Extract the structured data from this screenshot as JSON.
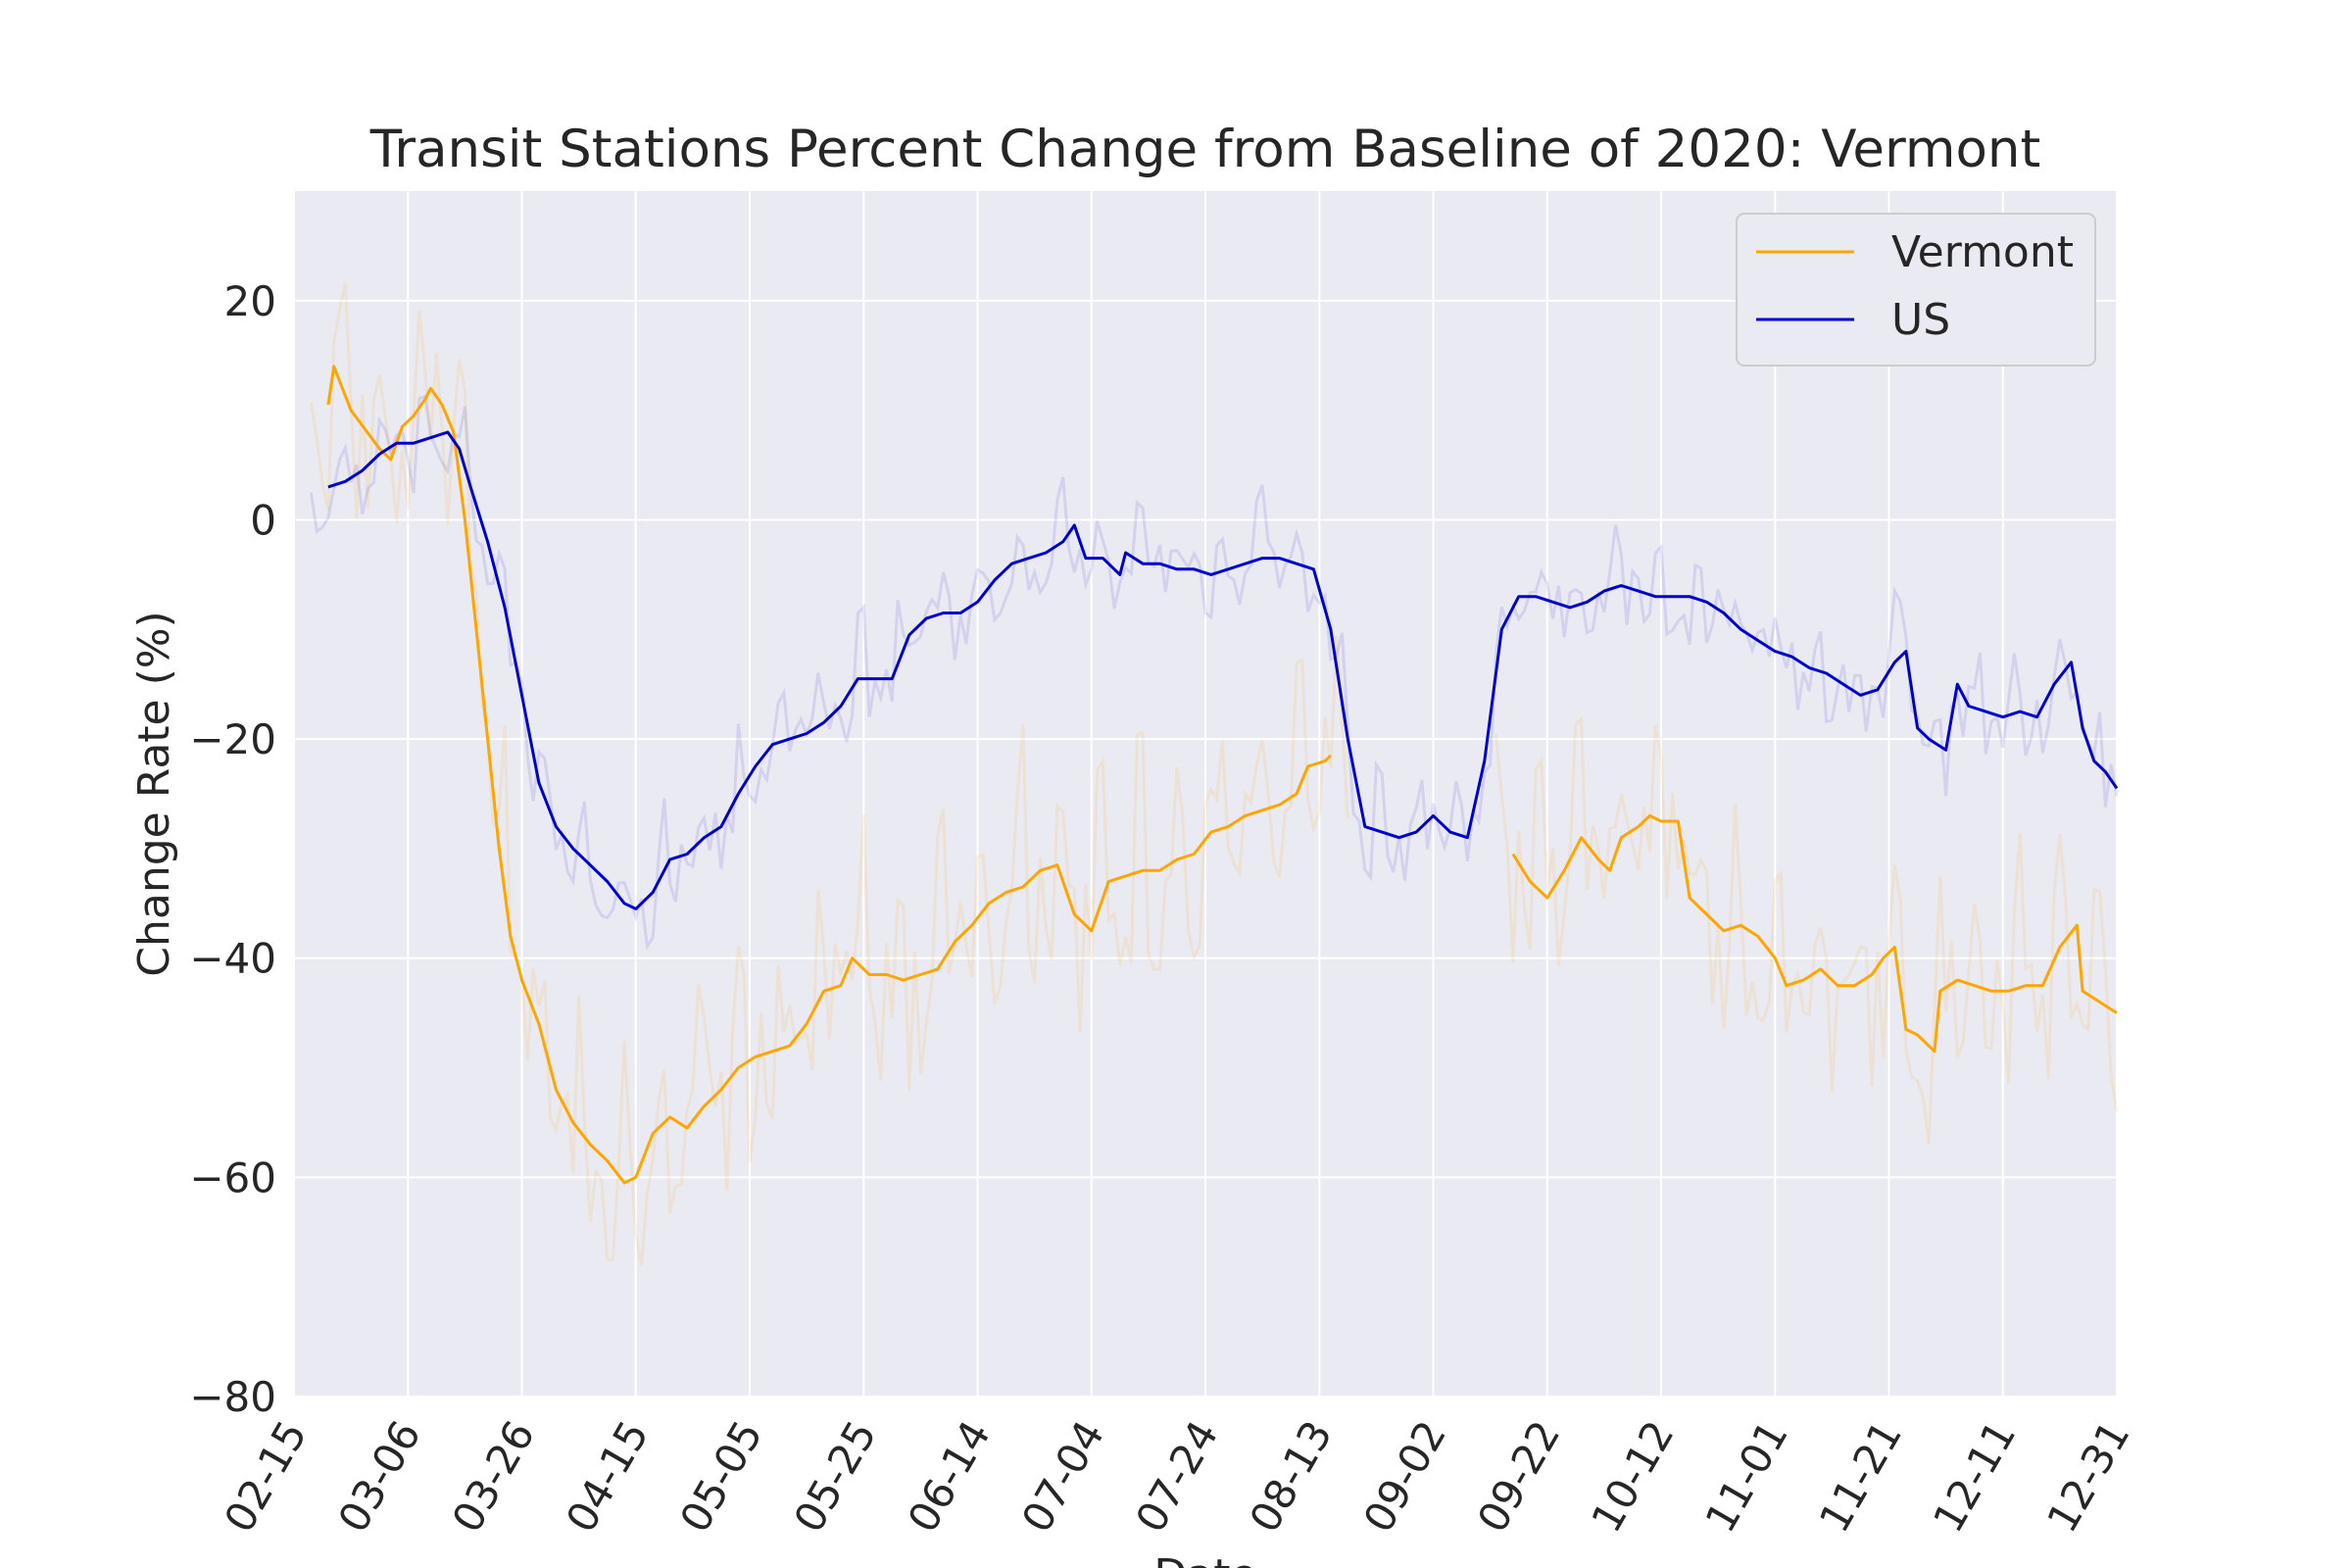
{
  "chart_data": {
    "type": "line",
    "title": "Transit Stations Percent Change from Baseline of 2020: Vermont",
    "xlabel": "Date",
    "ylabel": "Change Rate (%)",
    "xlim": [
      "02-15",
      "12-31"
    ],
    "ylim": [
      -80,
      30
    ],
    "grid": true,
    "legend_position": "top-right",
    "x_ticks": [
      "02-15",
      "03-06",
      "03-26",
      "04-15",
      "05-05",
      "05-25",
      "06-14",
      "07-04",
      "07-24",
      "08-13",
      "09-02",
      "09-22",
      "10-12",
      "11-01",
      "11-21",
      "12-11",
      "12-31"
    ],
    "y_ticks": [
      20,
      0,
      -20,
      -40,
      -60,
      -80
    ],
    "series": [
      {
        "name": "Vermont",
        "color": "#FFA500",
        "style": "smoothed",
        "points": [
          [
            "02-21",
            10.5
          ],
          [
            "02-22",
            14
          ],
          [
            "02-25",
            10
          ],
          [
            "03-01",
            6.5
          ],
          [
            "03-03",
            5.5
          ],
          [
            "03-05",
            8.5
          ],
          [
            "03-07",
            9.5
          ],
          [
            "03-09",
            11
          ],
          [
            "03-10",
            12
          ],
          [
            "03-12",
            10.5
          ],
          [
            "03-14",
            8
          ],
          [
            "03-16",
            0
          ],
          [
            "03-18",
            -10
          ],
          [
            "03-20",
            -20
          ],
          [
            "03-22",
            -30
          ],
          [
            "03-24",
            -38
          ],
          [
            "03-26",
            -42
          ],
          [
            "03-29",
            -46
          ],
          [
            "04-01",
            -52
          ],
          [
            "04-04",
            -55
          ],
          [
            "04-07",
            -57
          ],
          [
            "04-10",
            -58.5
          ],
          [
            "04-13",
            -60.5
          ],
          [
            "04-15",
            -60
          ],
          [
            "04-18",
            -56
          ],
          [
            "04-21",
            -54.5
          ],
          [
            "04-24",
            -55.5
          ],
          [
            "04-27",
            -53.5
          ],
          [
            "04-30",
            -52
          ],
          [
            "05-03",
            -50
          ],
          [
            "05-06",
            -49
          ],
          [
            "05-09",
            -48.5
          ],
          [
            "05-12",
            -48
          ],
          [
            "05-15",
            -46
          ],
          [
            "05-18",
            -43
          ],
          [
            "05-21",
            -42.5
          ],
          [
            "05-23",
            -40
          ],
          [
            "05-26",
            -41.5
          ],
          [
            "05-29",
            -41.5
          ],
          [
            "06-01",
            -42
          ],
          [
            "06-04",
            -41.5
          ],
          [
            "06-07",
            -41
          ],
          [
            "06-10",
            -38.5
          ],
          [
            "06-13",
            -37
          ],
          [
            "06-16",
            -35
          ],
          [
            "06-19",
            -34
          ],
          [
            "06-22",
            -33.5
          ],
          [
            "06-25",
            -32
          ],
          [
            "06-28",
            -31.5
          ],
          [
            "07-01",
            -36
          ],
          [
            "07-04",
            -37.5
          ],
          [
            "07-07",
            -33
          ],
          [
            "07-10",
            -32.5
          ],
          [
            "07-13",
            -32
          ],
          [
            "07-16",
            -32
          ],
          [
            "07-19",
            -31
          ],
          [
            "07-22",
            -30.5
          ],
          [
            "07-25",
            -28.5
          ],
          [
            "07-28",
            -28
          ],
          [
            "07-31",
            -27
          ],
          [
            "08-03",
            -26.5
          ],
          [
            "08-06",
            -26
          ],
          [
            "08-09",
            -25
          ],
          [
            "08-11",
            -22.5
          ],
          [
            "08-14",
            -22
          ],
          [
            "08-15",
            -21.5
          ],
          null,
          [
            "09-16",
            -30.5
          ],
          [
            "09-19",
            -33
          ],
          [
            "09-22",
            -34.5
          ],
          [
            "09-25",
            -32
          ],
          [
            "09-28",
            -29
          ],
          [
            "10-01",
            -31
          ],
          [
            "10-03",
            -32
          ],
          [
            "10-05",
            -29
          ],
          [
            "10-08",
            -28
          ],
          [
            "10-10",
            -27
          ],
          [
            "10-12",
            -27.5
          ],
          [
            "10-15",
            -27.5
          ],
          [
            "10-17",
            -34.5
          ],
          [
            "10-20",
            -36
          ],
          [
            "10-23",
            -37.5
          ],
          [
            "10-26",
            -37
          ],
          [
            "10-29",
            -38
          ],
          [
            "11-01",
            -40
          ],
          [
            "11-03",
            -42.5
          ],
          [
            "11-06",
            -42
          ],
          [
            "11-09",
            -41
          ],
          [
            "11-12",
            -42.5
          ],
          [
            "11-15",
            -42.5
          ],
          [
            "11-18",
            -41.5
          ],
          [
            "11-20",
            -40
          ],
          [
            "11-22",
            -39
          ],
          [
            "11-24",
            -46.5
          ],
          [
            "11-26",
            -47
          ],
          [
            "11-29",
            -48.5
          ],
          [
            "11-30",
            -43
          ],
          [
            "12-03",
            -42
          ],
          [
            "12-06",
            -42.5
          ],
          [
            "12-09",
            -43
          ],
          [
            "12-12",
            -43
          ],
          [
            "12-15",
            -42.5
          ],
          [
            "12-18",
            -42.5
          ],
          [
            "12-21",
            -39
          ],
          [
            "12-24",
            -37
          ],
          [
            "12-25",
            -43
          ],
          [
            "12-28",
            -44
          ],
          [
            "12-31",
            -45
          ]
        ]
      },
      {
        "name": "US",
        "color": "#0000CC",
        "style": "smoothed",
        "points": [
          [
            "02-21",
            3
          ],
          [
            "02-24",
            3.5
          ],
          [
            "02-27",
            4.5
          ],
          [
            "03-01",
            6
          ],
          [
            "03-04",
            7
          ],
          [
            "03-07",
            7
          ],
          [
            "03-10",
            7.5
          ],
          [
            "03-13",
            8
          ],
          [
            "03-15",
            6.5
          ],
          [
            "03-17",
            3
          ],
          [
            "03-20",
            -2
          ],
          [
            "03-23",
            -8
          ],
          [
            "03-26",
            -16
          ],
          [
            "03-29",
            -24
          ],
          [
            "04-01",
            -28
          ],
          [
            "04-04",
            -30
          ],
          [
            "04-07",
            -31.5
          ],
          [
            "04-10",
            -33
          ],
          [
            "04-13",
            -35
          ],
          [
            "04-15",
            -35.5
          ],
          [
            "04-18",
            -34
          ],
          [
            "04-21",
            -31
          ],
          [
            "04-24",
            -30.5
          ],
          [
            "04-27",
            -29
          ],
          [
            "04-30",
            -28
          ],
          [
            "05-03",
            -25
          ],
          [
            "05-06",
            -22.5
          ],
          [
            "05-09",
            -20.5
          ],
          [
            "05-12",
            -20
          ],
          [
            "05-15",
            -19.5
          ],
          [
            "05-18",
            -18.5
          ],
          [
            "05-21",
            -17
          ],
          [
            "05-24",
            -14.5
          ],
          [
            "05-27",
            -14.5
          ],
          [
            "05-30",
            -14.5
          ],
          [
            "06-02",
            -10.5
          ],
          [
            "06-05",
            -9
          ],
          [
            "06-08",
            -8.5
          ],
          [
            "06-11",
            -8.5
          ],
          [
            "06-14",
            -7.5
          ],
          [
            "06-17",
            -5.5
          ],
          [
            "06-20",
            -4
          ],
          [
            "06-23",
            -3.5
          ],
          [
            "06-26",
            -3
          ],
          [
            "06-29",
            -2
          ],
          [
            "07-01",
            -0.5
          ],
          [
            "07-03",
            -3.5
          ],
          [
            "07-06",
            -3.5
          ],
          [
            "07-09",
            -5
          ],
          [
            "07-10",
            -3
          ],
          [
            "07-13",
            -4
          ],
          [
            "07-16",
            -4
          ],
          [
            "07-19",
            -4.5
          ],
          [
            "07-22",
            -4.5
          ],
          [
            "07-25",
            -5
          ],
          [
            "07-28",
            -4.5
          ],
          [
            "07-31",
            -4
          ],
          [
            "08-03",
            -3.5
          ],
          [
            "08-06",
            -3.5
          ],
          [
            "08-09",
            -4
          ],
          [
            "08-12",
            -4.5
          ],
          [
            "08-15",
            -10
          ],
          [
            "08-18",
            -20
          ],
          [
            "08-21",
            -28
          ],
          [
            "08-24",
            -28.5
          ],
          [
            "08-27",
            -29
          ],
          [
            "08-30",
            -28.5
          ],
          [
            "09-02",
            -27
          ],
          [
            "09-05",
            -28.5
          ],
          [
            "09-08",
            -29
          ],
          [
            "09-11",
            -22
          ],
          [
            "09-14",
            -10
          ],
          [
            "09-17",
            -7
          ],
          [
            "09-20",
            -7
          ],
          [
            "09-23",
            -7.5
          ],
          [
            "09-26",
            -8
          ],
          [
            "09-29",
            -7.5
          ],
          [
            "10-02",
            -6.5
          ],
          [
            "10-05",
            -6
          ],
          [
            "10-08",
            -6.5
          ],
          [
            "10-11",
            -7
          ],
          [
            "10-14",
            -7
          ],
          [
            "10-17",
            -7
          ],
          [
            "10-20",
            -7.5
          ],
          [
            "10-23",
            -8.5
          ],
          [
            "10-26",
            -10
          ],
          [
            "10-29",
            -11
          ],
          [
            "11-01",
            -12
          ],
          [
            "11-04",
            -12.5
          ],
          [
            "11-07",
            -13.5
          ],
          [
            "11-10",
            -14
          ],
          [
            "11-13",
            -15
          ],
          [
            "11-16",
            -16
          ],
          [
            "11-19",
            -15.5
          ],
          [
            "11-22",
            -13
          ],
          [
            "11-24",
            -12
          ],
          [
            "11-26",
            -19
          ],
          [
            "11-28",
            -20
          ],
          [
            "12-01",
            -21
          ],
          [
            "12-03",
            -15
          ],
          [
            "12-05",
            -17
          ],
          [
            "12-08",
            -17.5
          ],
          [
            "12-11",
            -18
          ],
          [
            "12-14",
            -17.5
          ],
          [
            "12-17",
            -18
          ],
          [
            "12-20",
            -15
          ],
          [
            "12-23",
            -13
          ],
          [
            "12-25",
            -19
          ],
          [
            "12-27",
            -22
          ],
          [
            "12-29",
            -23
          ],
          [
            "12-31",
            -24.5
          ]
        ]
      }
    ]
  }
}
